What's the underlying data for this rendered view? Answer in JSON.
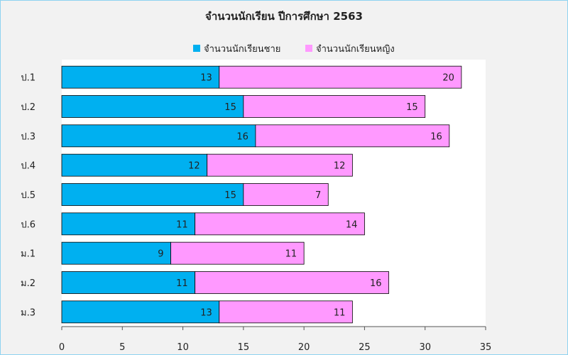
{
  "chart_data": {
    "type": "bar",
    "orientation": "horizontal",
    "stacked": true,
    "title": "จำนวนนักเรียน ปีการศึกษา 2563",
    "categories": [
      "ป.1",
      "ป.2",
      "ป.3",
      "ป.4",
      "ป.5",
      "ป.6",
      "ม.1",
      "ม.2",
      "ม.3"
    ],
    "series": [
      {
        "name": "จำนวนนักเรียนชาย",
        "color": "#00b0f0",
        "values": [
          13,
          15,
          16,
          12,
          15,
          11,
          9,
          11,
          13
        ]
      },
      {
        "name": "จำนวนนักเรียนหญิง",
        "color": "#ff99ff",
        "values": [
          20,
          15,
          16,
          12,
          7,
          14,
          11,
          16,
          11
        ]
      }
    ],
    "xlim": [
      0,
      35
    ],
    "xticks": [
      0,
      5,
      10,
      15,
      20,
      25,
      30,
      35
    ],
    "legend_position": "top",
    "grid": false
  }
}
